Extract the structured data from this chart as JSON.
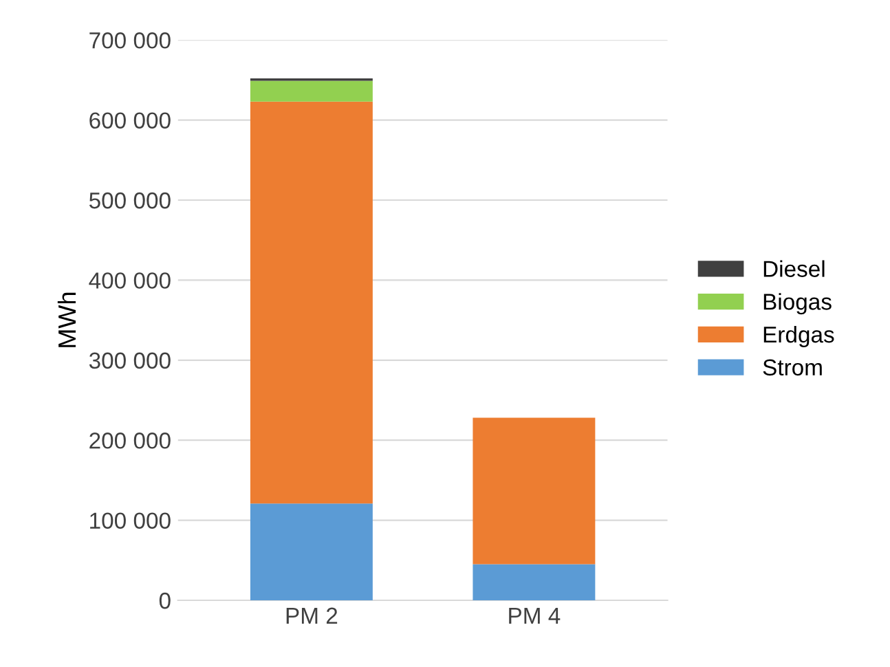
{
  "chart_data": {
    "type": "bar",
    "stacked": true,
    "ylabel": "MWh",
    "categories": [
      "PM 2",
      "PM 4"
    ],
    "series": [
      {
        "name": "Strom",
        "color": "#5b9bd5",
        "values": [
          121000,
          45000
        ]
      },
      {
        "name": "Erdgas",
        "color": "#ed7d31",
        "values": [
          502000,
          183000
        ]
      },
      {
        "name": "Biogas",
        "color": "#92d050",
        "values": [
          26000,
          0
        ]
      },
      {
        "name": "Diesel",
        "color": "#404040",
        "values": [
          3000,
          0
        ]
      }
    ],
    "ylim": [
      0,
      700000
    ],
    "yticks": [
      {
        "value": 0,
        "label": "0"
      },
      {
        "value": 100000,
        "label": "100 000"
      },
      {
        "value": 200000,
        "label": "200 000"
      },
      {
        "value": 300000,
        "label": "300 000"
      },
      {
        "value": 400000,
        "label": "400 000"
      },
      {
        "value": 500000,
        "label": "500 000"
      },
      {
        "value": 600000,
        "label": "600 000"
      },
      {
        "value": 700000,
        "label": "700 000"
      }
    ],
    "grid": "y",
    "legend": "right"
  }
}
